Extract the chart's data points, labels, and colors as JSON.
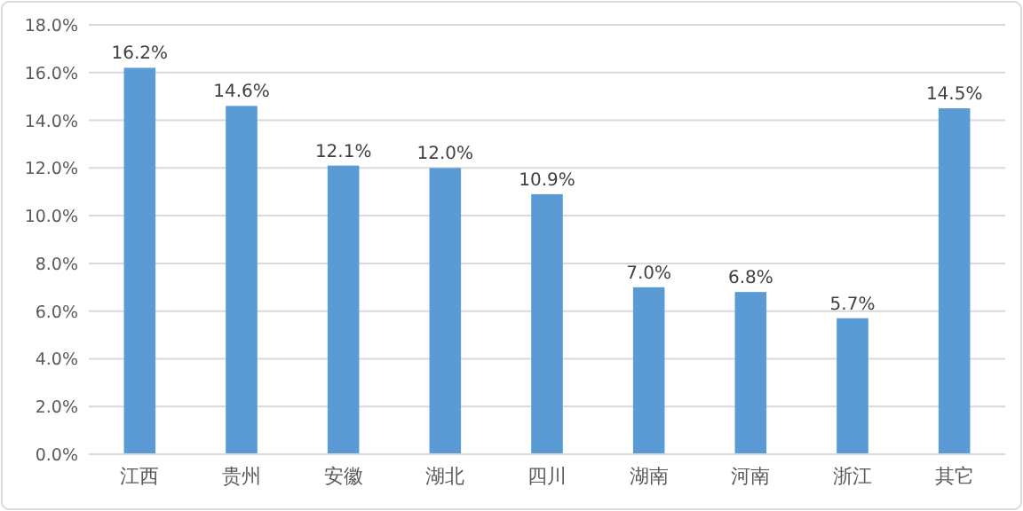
{
  "chart_data": {
    "type": "bar",
    "categories": [
      "江西",
      "贵州",
      "安徽",
      "湖北",
      "四川",
      "湖南",
      "河南",
      "浙江",
      "其它"
    ],
    "values": [
      16.2,
      14.6,
      12.1,
      12.0,
      10.9,
      7.0,
      6.8,
      5.7,
      14.5
    ],
    "value_labels": [
      "16.2%",
      "14.6%",
      "12.1%",
      "12.0%",
      "10.9%",
      "7.0%",
      "6.8%",
      "5.7%",
      "14.5%"
    ],
    "color": "#5b9bd5",
    "ylim": [
      0,
      18
    ],
    "yticks": [
      {
        "value": 0,
        "label": "0.0%"
      },
      {
        "value": 2,
        "label": "2.0%"
      },
      {
        "value": 4,
        "label": "4.0%"
      },
      {
        "value": 6,
        "label": "6.0%"
      },
      {
        "value": 8,
        "label": "8.0%"
      },
      {
        "value": 10,
        "label": "10.0%"
      },
      {
        "value": 12,
        "label": "12.0%"
      },
      {
        "value": 14,
        "label": "14.0%"
      },
      {
        "value": 16,
        "label": "16.0%"
      },
      {
        "value": 18,
        "label": "18.0%"
      }
    ],
    "grid": "y"
  }
}
